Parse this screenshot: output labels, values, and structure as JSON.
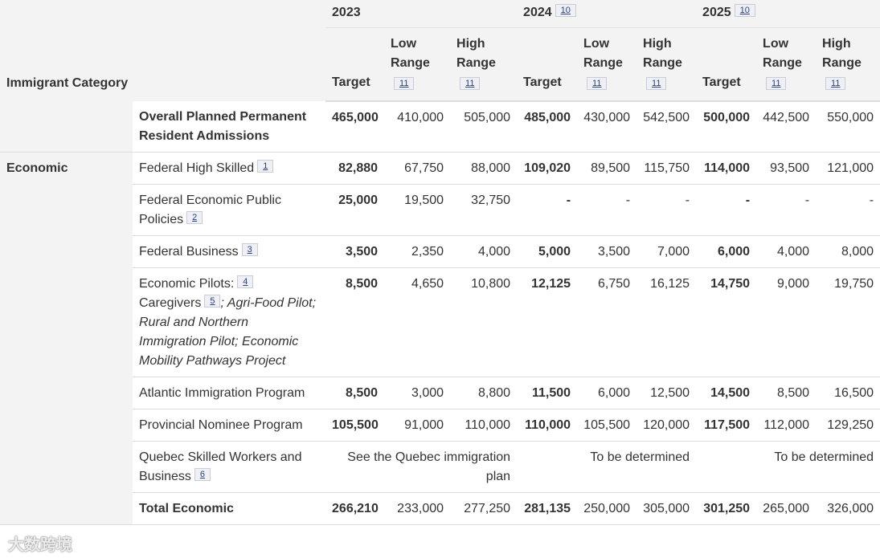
{
  "table": {
    "header": {
      "category": "Immigrant Category",
      "years": [
        {
          "label": "2023",
          "columns": [
            {
              "label": "Target"
            },
            {
              "label": "Low Range",
              "note": "11"
            },
            {
              "label": "High Range",
              "note": "11"
            }
          ]
        },
        {
          "label": "2024",
          "note": "10",
          "columns": [
            {
              "label": "Target"
            },
            {
              "label": "Low Range",
              "note": "11"
            },
            {
              "label": "High Range",
              "note": "11"
            }
          ]
        },
        {
          "label": "2025",
          "note": "10",
          "columns": [
            {
              "label": "Target"
            },
            {
              "label": "Low Range",
              "note": "11"
            },
            {
              "label": "High Range",
              "note": "11"
            }
          ]
        }
      ]
    },
    "overall": {
      "bold": true,
      "name": [
        {
          "text": "Overall Planned Permanent Resident Admissions"
        }
      ],
      "cells": [
        "465,000",
        "410,000",
        "505,000",
        "485,000",
        "430,000",
        "542,500",
        "500,000",
        "442,500",
        "550,000"
      ]
    },
    "groups": [
      {
        "label": "Economic",
        "rows": [
          {
            "name": [
              {
                "text": "Federal High Skilled"
              },
              {
                "note": "1"
              }
            ],
            "cells": [
              "82,880",
              "67,750",
              "88,000",
              "109,020",
              "89,500",
              "115,750",
              "114,000",
              "93,500",
              "121,000"
            ]
          },
          {
            "name": [
              {
                "text": "Federal Economic Public Policies"
              },
              {
                "note": "2"
              }
            ],
            "cells": [
              "25,000",
              "19,500",
              "32,750",
              "-",
              "-",
              "-",
              "-",
              "-",
              "-"
            ]
          },
          {
            "name": [
              {
                "text": "Federal Business"
              },
              {
                "note": "3"
              }
            ],
            "cells": [
              "3,500",
              "2,350",
              "4,000",
              "5,000",
              "3,500",
              "7,000",
              "6,000",
              "4,000",
              "8,000"
            ]
          },
          {
            "name": [
              {
                "text": "Economic Pilots:"
              },
              {
                "note": "4"
              },
              {
                "text": "Caregivers"
              },
              {
                "note": "5"
              },
              {
                "text": "; Agri-Food Pilot; Rural and Northern Immigration Pilot; Economic Mobility Pathways Project",
                "italic": true
              }
            ],
            "cells": [
              "8,500",
              "4,650",
              "10,800",
              "12,125",
              "6,750",
              "16,125",
              "14,750",
              "9,000",
              "19,750"
            ]
          },
          {
            "name": [
              {
                "text": "Atlantic Immigration Program"
              }
            ],
            "cells": [
              "8,500",
              "3,000",
              "8,800",
              "11,500",
              "6,000",
              "12,500",
              "14,500",
              "8,500",
              "16,500"
            ]
          },
          {
            "name": [
              {
                "text": "Provincial Nominee Program"
              }
            ],
            "cells": [
              "105,500",
              "91,000",
              "110,000",
              "110,000",
              "105,500",
              "120,000",
              "117,500",
              "112,000",
              "129,250"
            ]
          },
          {
            "name": [
              {
                "text": "Quebec Skilled Workers and Business"
              },
              {
                "note": "6"
              }
            ],
            "merged": true,
            "cells": [
              "See the Quebec immigration plan",
              "To be determined",
              "To be determined"
            ]
          },
          {
            "bold": true,
            "name": [
              {
                "text": "Total Economic"
              }
            ],
            "cells": [
              "266,210",
              "233,000",
              "277,250",
              "281,135",
              "250,000",
              "305,000",
              "301,250",
              "265,000",
              "326,000"
            ]
          }
        ]
      }
    ],
    "watermark": "大数跨境"
  }
}
